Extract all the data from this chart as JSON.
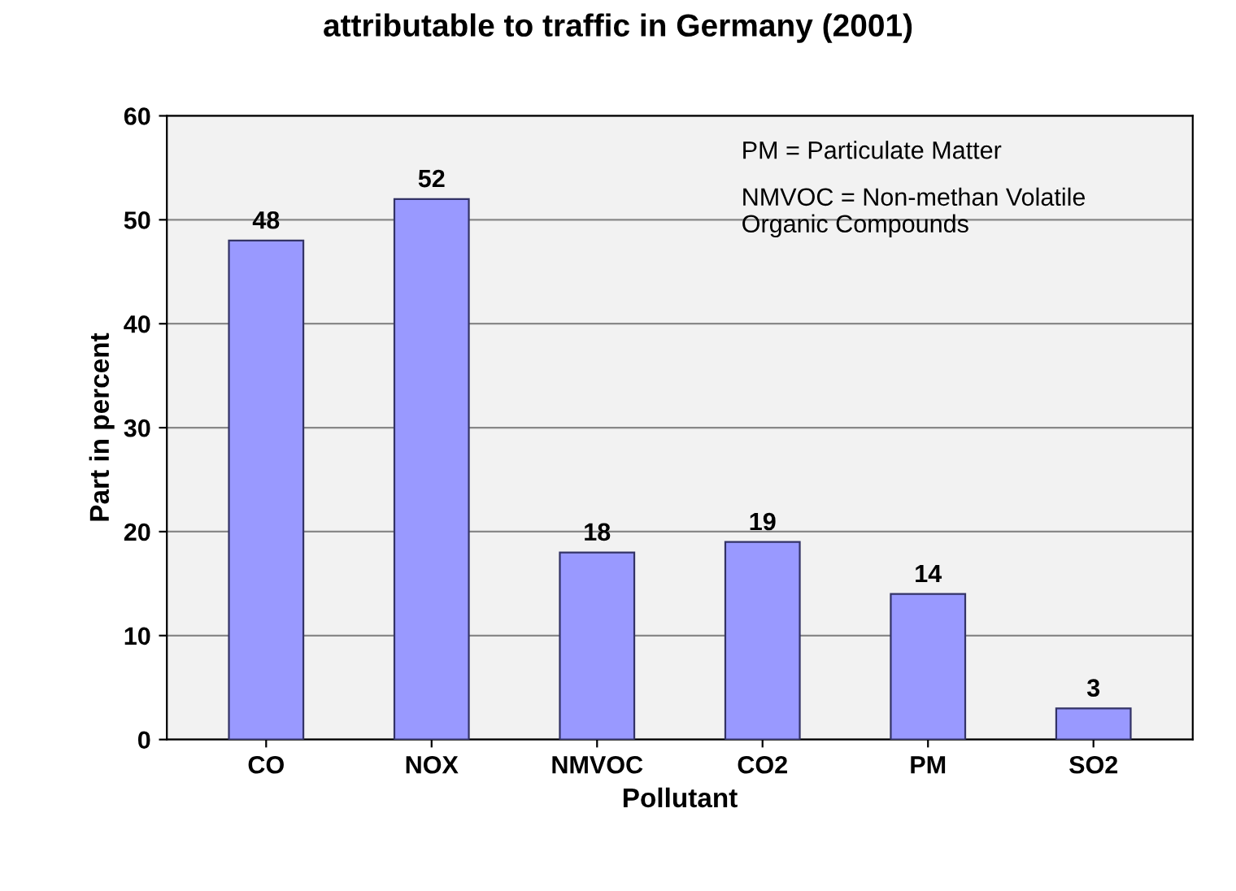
{
  "chart_data": {
    "type": "bar",
    "title": "attributable to traffic in Germany (2001)",
    "xlabel": "Pollutant",
    "ylabel": "Part in percent",
    "categories": [
      "CO",
      "NOX",
      "NMVOC",
      "CO2",
      "PM",
      "SO2"
    ],
    "values": [
      48,
      52,
      18,
      19,
      14,
      3
    ],
    "color": "#9999ff",
    "ylim": [
      0,
      60
    ],
    "yticks": [
      0,
      10,
      20,
      30,
      40,
      50,
      60
    ],
    "grid": "y",
    "data_labels": true,
    "annotations": [
      "PM = Particulate Matter",
      "NMVOC = Non-methan Volatile\nOrganic Compounds"
    ]
  }
}
